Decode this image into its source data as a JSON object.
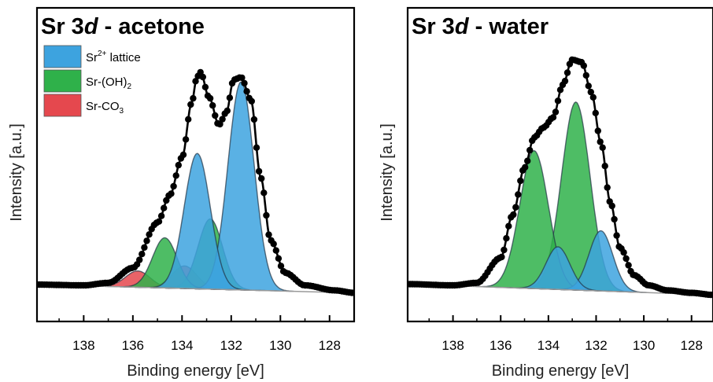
{
  "colors": {
    "lattice": "#3da3df",
    "hydroxide": "#2fb14a",
    "carbonate": "#e5484e",
    "data": "#000000",
    "background_line": "#9a9a9a"
  },
  "legend": [
    {
      "label": "Sr",
      "sup": "2+",
      "sub": "",
      "tail": " lattice",
      "color_key": "lattice"
    },
    {
      "label": "Sr-(OH)",
      "sup": "",
      "sub": "2",
      "tail": "",
      "color_key": "hydroxide"
    },
    {
      "label": "Sr-CO",
      "sup": "",
      "sub": "3",
      "tail": "",
      "color_key": "carbonate"
    }
  ],
  "chart_data": [
    {
      "type": "scatter",
      "title_prefix": "Sr 3",
      "title_italic": "d",
      "title_suffix": " - acetone",
      "xlabel": "Binding energy [eV]",
      "ylabel": "Intensity [a.u.]",
      "xlim": [
        139.9,
        127.0
      ],
      "ylim": [
        0,
        1.0
      ],
      "x_reversed": true,
      "xticks": [
        138,
        136,
        134,
        132,
        130,
        128
      ],
      "y_ticks_shown": false,
      "show_legend": true,
      "legend_position": "top-left",
      "background": {
        "x1": 139.9,
        "y1": 0.053,
        "x2": 127.0,
        "y2": 0.02
      },
      "components": [
        {
          "name": "Sr-CO3 3d5/2",
          "series": "carbonate",
          "center": 133.9,
          "amplitude": 0.09,
          "sigma": 0.5
        },
        {
          "name": "Sr-CO3 3d3/2",
          "series": "carbonate",
          "center": 135.8,
          "amplitude": 0.065,
          "sigma": 0.5
        },
        {
          "name": "Sr-(OH)2 3d5/2",
          "series": "hydroxide",
          "center": 132.85,
          "amplitude": 0.28,
          "sigma": 0.5
        },
        {
          "name": "Sr-(OH)2 3d3/2",
          "series": "hydroxide",
          "center": 134.7,
          "amplitude": 0.2,
          "sigma": 0.5
        },
        {
          "name": "Sr lattice 3d5/2",
          "series": "lattice",
          "center": 131.6,
          "amplitude": 0.83,
          "sigma": 0.53
        },
        {
          "name": "Sr lattice 3d3/2",
          "series": "lattice",
          "center": 133.38,
          "amplitude": 0.54,
          "sigma": 0.53
        }
      ],
      "measured_points": [
        {
          "x": 139.9,
          "y": 0.053
        },
        {
          "x": 138.0,
          "y": 0.05
        },
        {
          "x": 137.0,
          "y": 0.06
        },
        {
          "x": 136.0,
          "y": 0.12
        },
        {
          "x": 135.0,
          "y": 0.3
        },
        {
          "x": 134.5,
          "y": 0.41
        },
        {
          "x": 134.0,
          "y": 0.56
        },
        {
          "x": 133.6,
          "y": 0.78
        },
        {
          "x": 133.4,
          "y": 0.88
        },
        {
          "x": 133.25,
          "y": 0.9
        },
        {
          "x": 132.9,
          "y": 0.8
        },
        {
          "x": 132.5,
          "y": 0.69
        },
        {
          "x": 132.2,
          "y": 0.74
        },
        {
          "x": 131.9,
          "y": 0.87
        },
        {
          "x": 131.6,
          "y": 0.88
        },
        {
          "x": 131.2,
          "y": 0.79
        },
        {
          "x": 130.8,
          "y": 0.48
        },
        {
          "x": 130.4,
          "y": 0.23
        },
        {
          "x": 129.8,
          "y": 0.1
        },
        {
          "x": 129.0,
          "y": 0.05
        },
        {
          "x": 127.8,
          "y": 0.03
        },
        {
          "x": 127.0,
          "y": 0.02
        }
      ]
    },
    {
      "type": "scatter",
      "title_prefix": "Sr 3",
      "title_italic": "d",
      "title_suffix": " - water",
      "xlabel": "Binding energy [eV]",
      "ylabel": "Intensity [a.u.]",
      "xlim": [
        139.9,
        127.1
      ],
      "ylim": [
        0,
        1.0
      ],
      "x_reversed": true,
      "xticks": [
        138,
        136,
        134,
        132,
        130,
        128
      ],
      "y_ticks_shown": false,
      "show_legend": false,
      "background": {
        "x1": 139.9,
        "y1": 0.055,
        "x2": 127.1,
        "y2": 0.012
      },
      "components": [
        {
          "name": "Sr-(OH)2 3d5/2",
          "series": "hydroxide",
          "center": 132.85,
          "amplitude": 0.75,
          "sigma": 0.6
        },
        {
          "name": "Sr-(OH)2 3d3/2",
          "series": "hydroxide",
          "center": 134.6,
          "amplitude": 0.55,
          "sigma": 0.6
        },
        {
          "name": "Sr lattice 3d5/2",
          "series": "lattice",
          "center": 131.8,
          "amplitude": 0.24,
          "sigma": 0.5
        },
        {
          "name": "Sr lattice 3d3/2",
          "series": "lattice",
          "center": 133.6,
          "amplitude": 0.17,
          "sigma": 0.5
        }
      ],
      "measured_points": [
        {
          "x": 139.9,
          "y": 0.055
        },
        {
          "x": 138.0,
          "y": 0.05
        },
        {
          "x": 137.0,
          "y": 0.06
        },
        {
          "x": 136.0,
          "y": 0.16
        },
        {
          "x": 135.5,
          "y": 0.33
        },
        {
          "x": 135.0,
          "y": 0.52
        },
        {
          "x": 134.6,
          "y": 0.64
        },
        {
          "x": 134.2,
          "y": 0.68
        },
        {
          "x": 133.8,
          "y": 0.72
        },
        {
          "x": 133.4,
          "y": 0.85
        },
        {
          "x": 133.0,
          "y": 0.95
        },
        {
          "x": 132.6,
          "y": 0.94
        },
        {
          "x": 132.2,
          "y": 0.82
        },
        {
          "x": 131.8,
          "y": 0.62
        },
        {
          "x": 131.4,
          "y": 0.38
        },
        {
          "x": 131.0,
          "y": 0.2
        },
        {
          "x": 130.4,
          "y": 0.09
        },
        {
          "x": 129.8,
          "y": 0.05
        },
        {
          "x": 129.0,
          "y": 0.03
        },
        {
          "x": 128.0,
          "y": 0.02
        },
        {
          "x": 127.1,
          "y": 0.012
        }
      ]
    }
  ]
}
